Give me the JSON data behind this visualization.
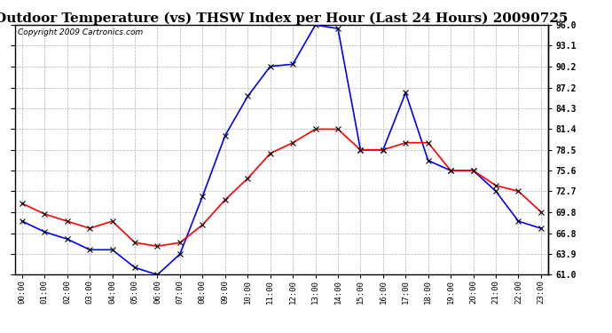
{
  "title": "Outdoor Temperature (vs) THSW Index per Hour (Last 24 Hours) 20090725",
  "copyright": "Copyright 2009 Cartronics.com",
  "hours": [
    "00:00",
    "01:00",
    "02:00",
    "03:00",
    "04:00",
    "05:00",
    "06:00",
    "07:00",
    "08:00",
    "09:00",
    "10:00",
    "11:00",
    "12:00",
    "13:00",
    "14:00",
    "15:00",
    "16:00",
    "17:00",
    "18:00",
    "19:00",
    "20:00",
    "21:00",
    "22:00",
    "23:00"
  ],
  "outdoor_temp": [
    71.0,
    69.5,
    68.5,
    67.5,
    68.5,
    65.5,
    65.0,
    65.5,
    68.0,
    71.5,
    74.5,
    78.0,
    79.5,
    81.4,
    81.4,
    78.5,
    78.5,
    79.5,
    79.5,
    75.6,
    75.6,
    73.5,
    72.7,
    69.8
  ],
  "thsw_index": [
    68.5,
    67.0,
    66.0,
    64.5,
    64.5,
    62.0,
    61.0,
    63.9,
    72.0,
    80.5,
    86.0,
    90.2,
    90.5,
    96.0,
    95.5,
    78.5,
    78.5,
    86.5,
    77.0,
    75.6,
    75.6,
    72.7,
    68.5,
    67.5
  ],
  "temp_color": "#FF0000",
  "thsw_color": "#0000FF",
  "bg_color": "#FFFFFF",
  "plot_bg_color": "#FFFFFF",
  "grid_color": "#AAAAAA",
  "ymin": 61.0,
  "ymax": 96.0,
  "yticks": [
    61.0,
    63.9,
    66.8,
    69.8,
    72.7,
    75.6,
    78.5,
    81.4,
    84.3,
    87.2,
    90.2,
    93.1,
    96.0
  ],
  "ytick_labels": [
    "61.0",
    "63.9",
    "66.8",
    "69.8",
    "72.7",
    "75.6",
    "78.5",
    "81.4",
    "84.3",
    "87.2",
    "90.2",
    "93.1",
    "96.0"
  ],
  "title_fontsize": 11,
  "copyright_fontsize": 6.5,
  "tick_fontsize": 7,
  "xtick_fontsize": 6.5
}
